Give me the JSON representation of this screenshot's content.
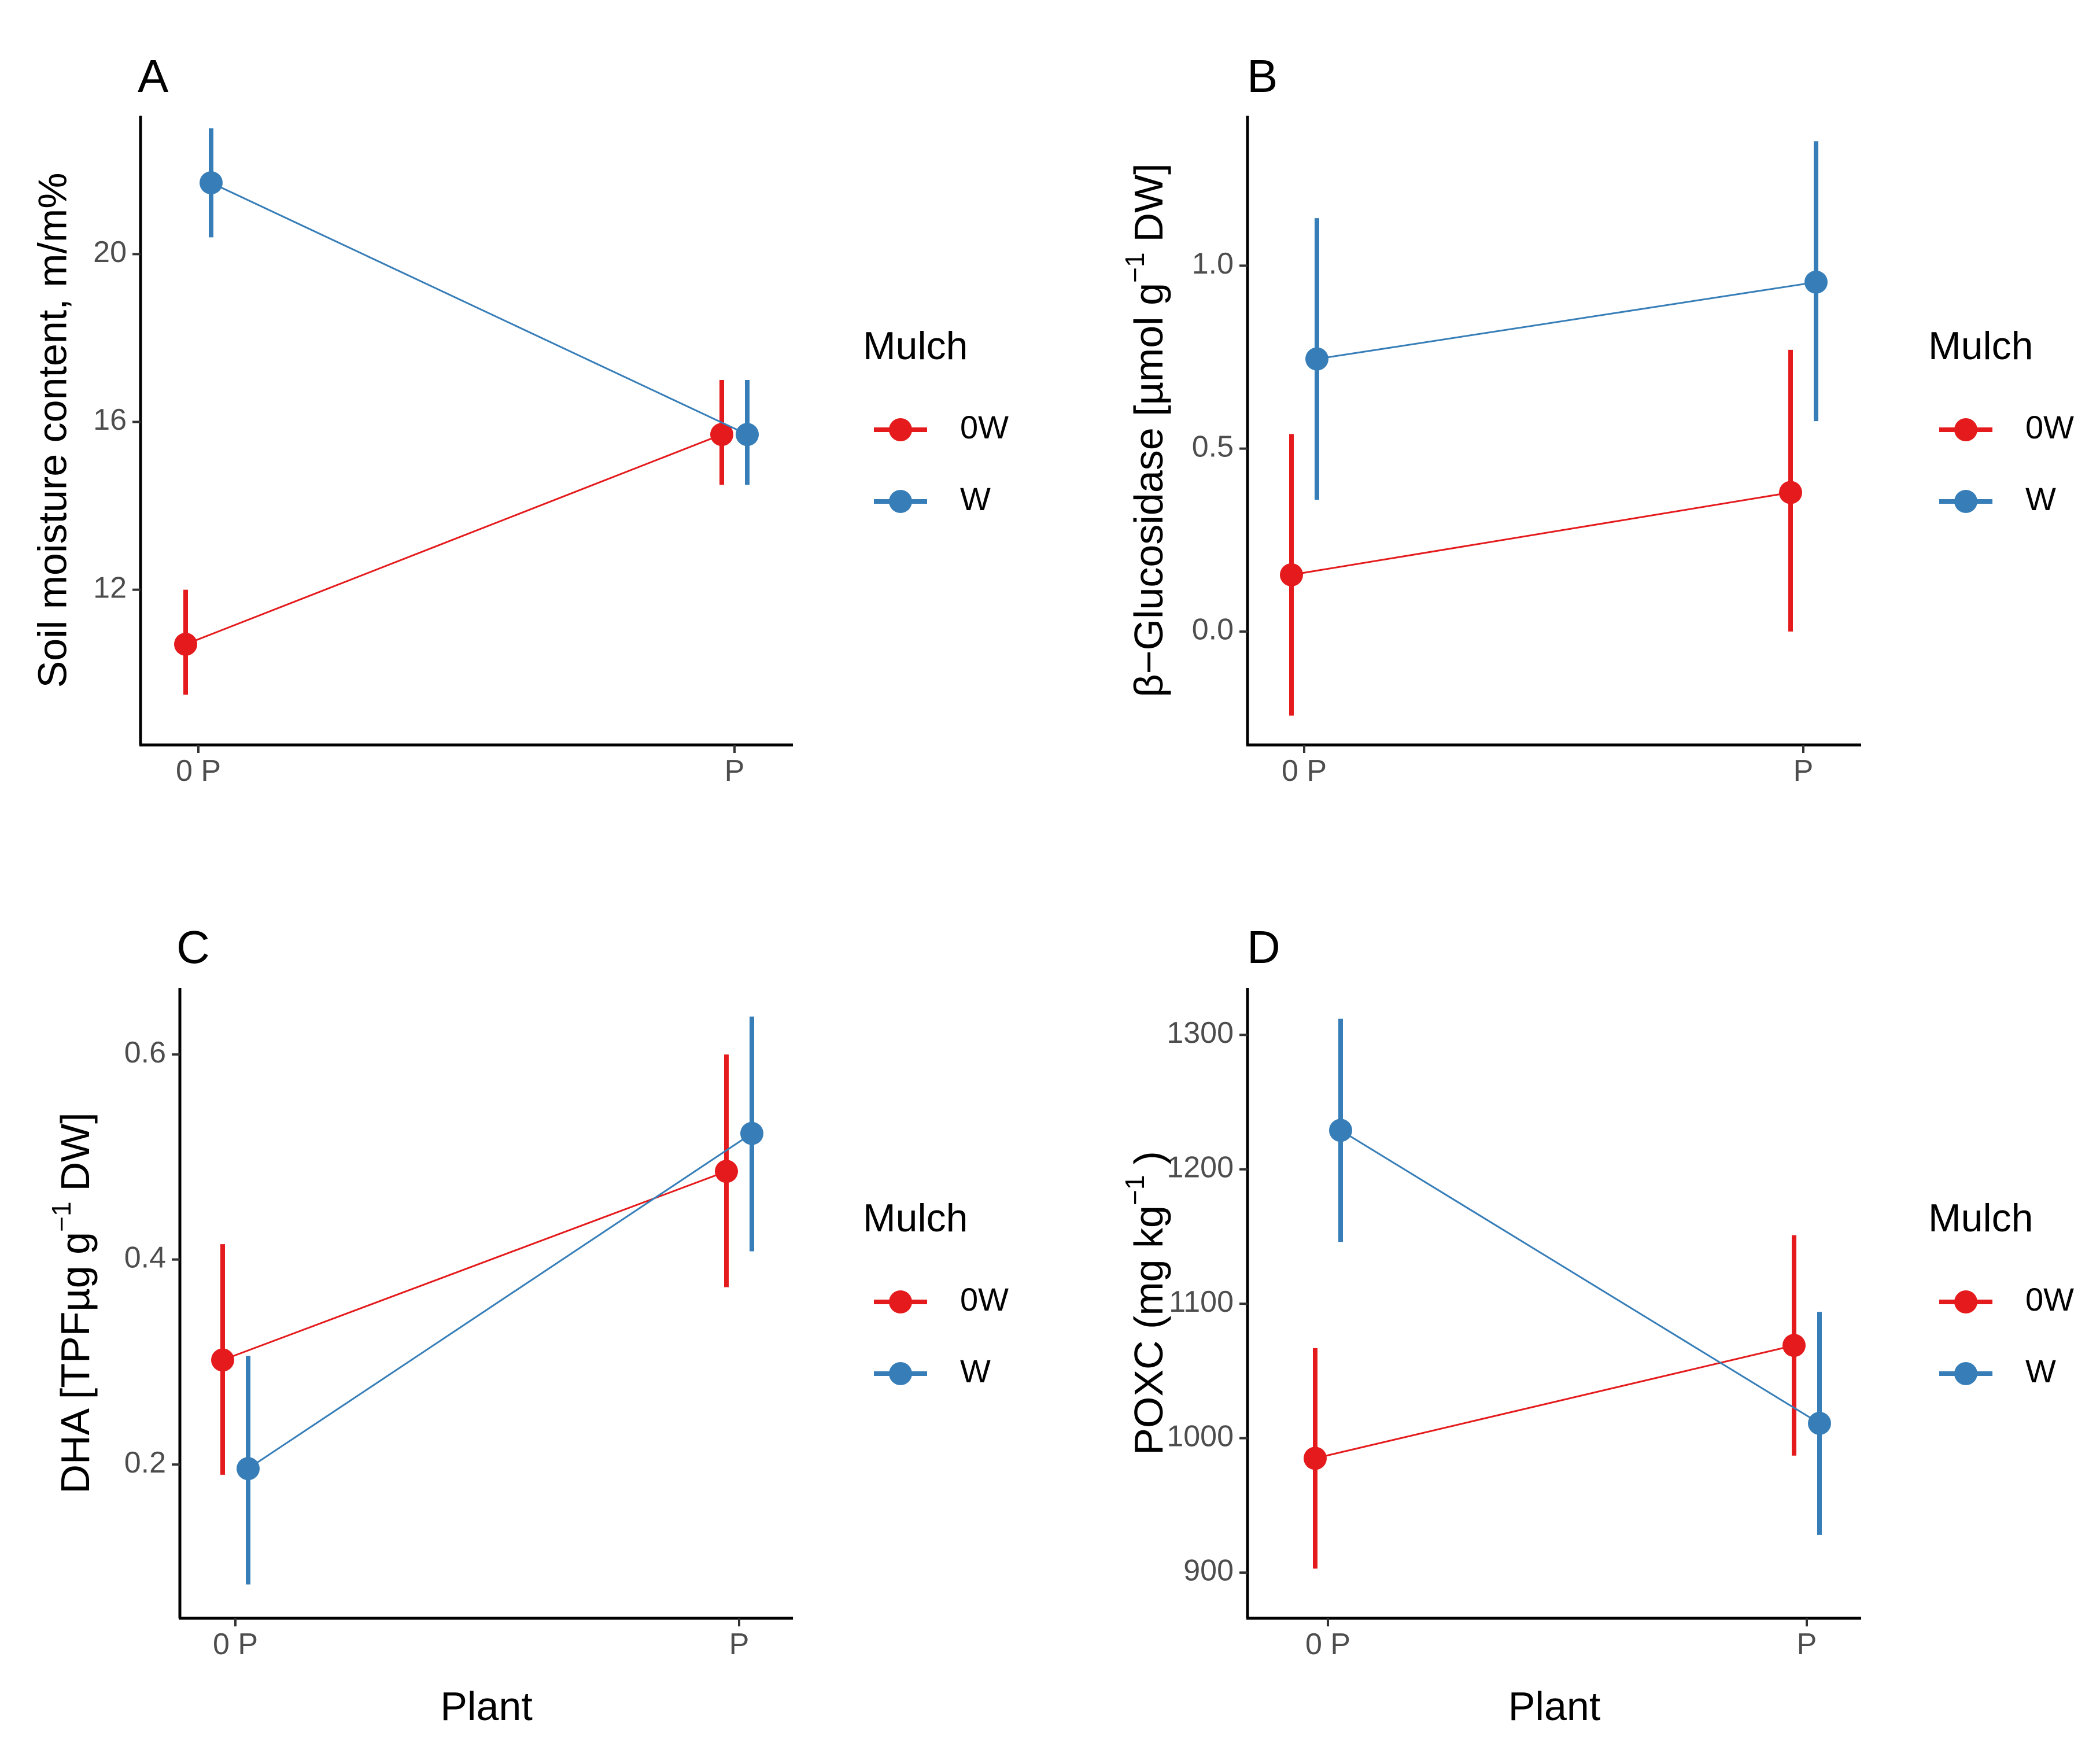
{
  "chart_data": [
    {
      "panel": "A",
      "type": "line",
      "x_axis_title": "",
      "y_axis_title": "Soil moisture content, m/m%",
      "categories": [
        "0 P",
        "P"
      ],
      "ylim": [
        8.3,
        23.3
      ],
      "yticks": [
        12,
        16,
        20
      ],
      "ytick_labels": [
        "12",
        "16",
        "20"
      ],
      "legend_title": "Mulch",
      "series": [
        {
          "name": "0W",
          "color": "#e41a1c",
          "values": [
            10.7,
            15.7
          ],
          "lower": [
            9.5,
            14.5
          ],
          "upper": [
            12.0,
            17.0
          ]
        },
        {
          "name": "W",
          "color": "#377eb8",
          "values": [
            21.7,
            15.7
          ],
          "lower": [
            20.4,
            14.5
          ],
          "upper": [
            23.0,
            17.0
          ]
        }
      ]
    },
    {
      "panel": "B",
      "type": "line",
      "x_axis_title": "",
      "y_axis_title": "β−Glucosidase [µmol g⁻¹ DW]",
      "y_axis_title_parts": {
        "main": "β−Glucosidase [µmol g",
        "sup": "−1",
        "end": "DW]"
      },
      "categories": [
        "0 P",
        "P"
      ],
      "ylim": [
        -0.31,
        1.41
      ],
      "yticks": [
        0.0,
        0.5,
        1.0
      ],
      "ytick_labels": [
        "0.0",
        "0.5",
        "1.0"
      ],
      "legend_title": "Mulch",
      "series": [
        {
          "name": "0W",
          "color": "#e41a1c",
          "values": [
            0.155,
            0.38
          ],
          "lower": [
            -0.23,
            0.0
          ],
          "upper": [
            0.54,
            0.77
          ]
        },
        {
          "name": "W",
          "color": "#377eb8",
          "values": [
            0.745,
            0.955
          ],
          "lower": [
            0.36,
            0.575
          ],
          "upper": [
            1.13,
            1.34
          ]
        }
      ]
    },
    {
      "panel": "C",
      "type": "line",
      "x_axis_title": "Plant",
      "y_axis_title": "DHA [TPFµg g⁻¹ DW]",
      "y_axis_title_parts": {
        "main": "DHA [TPFµg g",
        "sup": "−1",
        "end": "DW]"
      },
      "categories": [
        "0 P",
        "P"
      ],
      "ylim": [
        0.05,
        0.665
      ],
      "yticks": [
        0.2,
        0.4,
        0.6
      ],
      "ytick_labels": [
        "0.2",
        "0.4",
        "0.6"
      ],
      "legend_title": "Mulch",
      "series": [
        {
          "name": "0W",
          "color": "#e41a1c",
          "values": [
            0.302,
            0.486
          ],
          "lower": [
            0.19,
            0.373
          ],
          "upper": [
            0.415,
            0.6
          ]
        },
        {
          "name": "W",
          "color": "#377eb8",
          "values": [
            0.196,
            0.523
          ],
          "lower": [
            0.083,
            0.408
          ],
          "upper": [
            0.306,
            0.637
          ]
        }
      ]
    },
    {
      "panel": "D",
      "type": "line",
      "x_axis_title": "Plant",
      "y_axis_title": "POXC (mg kg⁻¹)",
      "y_axis_title_parts": {
        "main": "POXC (mg kg",
        "sup": "−1",
        "end": ")"
      },
      "categories": [
        "0 P",
        "P"
      ],
      "ylim": [
        866,
        1335
      ],
      "yticks": [
        900,
        1000,
        1100,
        1200,
        1300
      ],
      "ytick_labels": [
        "900",
        "1000",
        "1100",
        "1200",
        "1300"
      ],
      "legend_title": "Mulch",
      "series": [
        {
          "name": "0W",
          "color": "#e41a1c",
          "values": [
            985,
            1069
          ],
          "lower": [
            903,
            987
          ],
          "upper": [
            1067,
            1151
          ]
        },
        {
          "name": "W",
          "color": "#377eb8",
          "values": [
            1229,
            1011
          ],
          "lower": [
            1146,
            928
          ],
          "upper": [
            1312,
            1094
          ]
        }
      ]
    }
  ]
}
